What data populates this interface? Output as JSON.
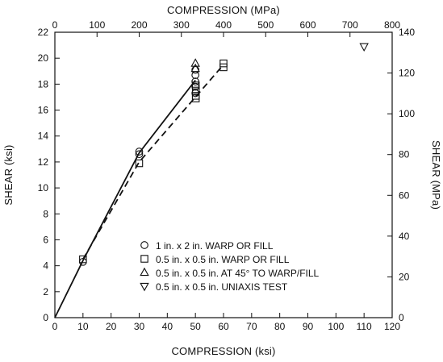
{
  "chart_data": {
    "type": "scatter",
    "title": "",
    "xlabel": "COMPRESSION (ksi)",
    "ylabel": "SHEAR (ksi)",
    "x2label": "COMPRESSION (MPa)",
    "y2label": "SHEAR (MPa)",
    "xlim": [
      0,
      120
    ],
    "ylim": [
      0,
      22
    ],
    "x2lim": [
      0,
      800
    ],
    "y2lim": [
      0,
      140
    ],
    "xticks": [
      0,
      10,
      20,
      30,
      40,
      50,
      60,
      70,
      80,
      90,
      100,
      110,
      120
    ],
    "yticks": [
      0,
      2,
      4,
      6,
      8,
      10,
      12,
      14,
      16,
      18,
      20,
      22
    ],
    "x2ticks": [
      0,
      100,
      200,
      300,
      400,
      500,
      600,
      700,
      800
    ],
    "y2ticks": [
      0,
      20,
      40,
      60,
      80,
      100,
      120,
      140
    ],
    "grid": false,
    "legend_position": "bottom-right",
    "series": [
      {
        "name": "1 in. x 2 in. WARP OR FILL",
        "marker": "circle",
        "points": [
          [
            10,
            4.3
          ],
          [
            30,
            12.8
          ],
          [
            30,
            12.6
          ],
          [
            50,
            17.3
          ],
          [
            50,
            17.8
          ],
          [
            50,
            18.2
          ],
          [
            50,
            18.7
          ],
          [
            50,
            19.1
          ]
        ]
      },
      {
        "name": "0.5 in. x 0.5 in. WARP OR FILL",
        "marker": "square",
        "points": [
          [
            10,
            4.5
          ],
          [
            30,
            11.9
          ],
          [
            50,
            16.9
          ],
          [
            50,
            17.1
          ],
          [
            50,
            17.5
          ],
          [
            50,
            17.9
          ],
          [
            60,
            19.3
          ],
          [
            60,
            19.6
          ]
        ]
      },
      {
        "name": "0.5 in. x 0.5 in. AT 45° TO WARP/FILL",
        "marker": "triangle-up",
        "points": [
          [
            50,
            19.2
          ],
          [
            50,
            19.6
          ]
        ]
      },
      {
        "name": "0.5 in. x 0.5 in. UNIAXIS TEST",
        "marker": "triangle-down",
        "points": [
          [
            110,
            20.9
          ]
        ]
      }
    ],
    "lines": [
      {
        "style": "solid",
        "points": [
          [
            0,
            0
          ],
          [
            10,
            4.4
          ],
          [
            30,
            12.7
          ],
          [
            50,
            18.3
          ]
        ]
      },
      {
        "style": "dashed",
        "points": [
          [
            10,
            4.5
          ],
          [
            30,
            12.0
          ],
          [
            60,
            19.5
          ]
        ]
      }
    ]
  }
}
